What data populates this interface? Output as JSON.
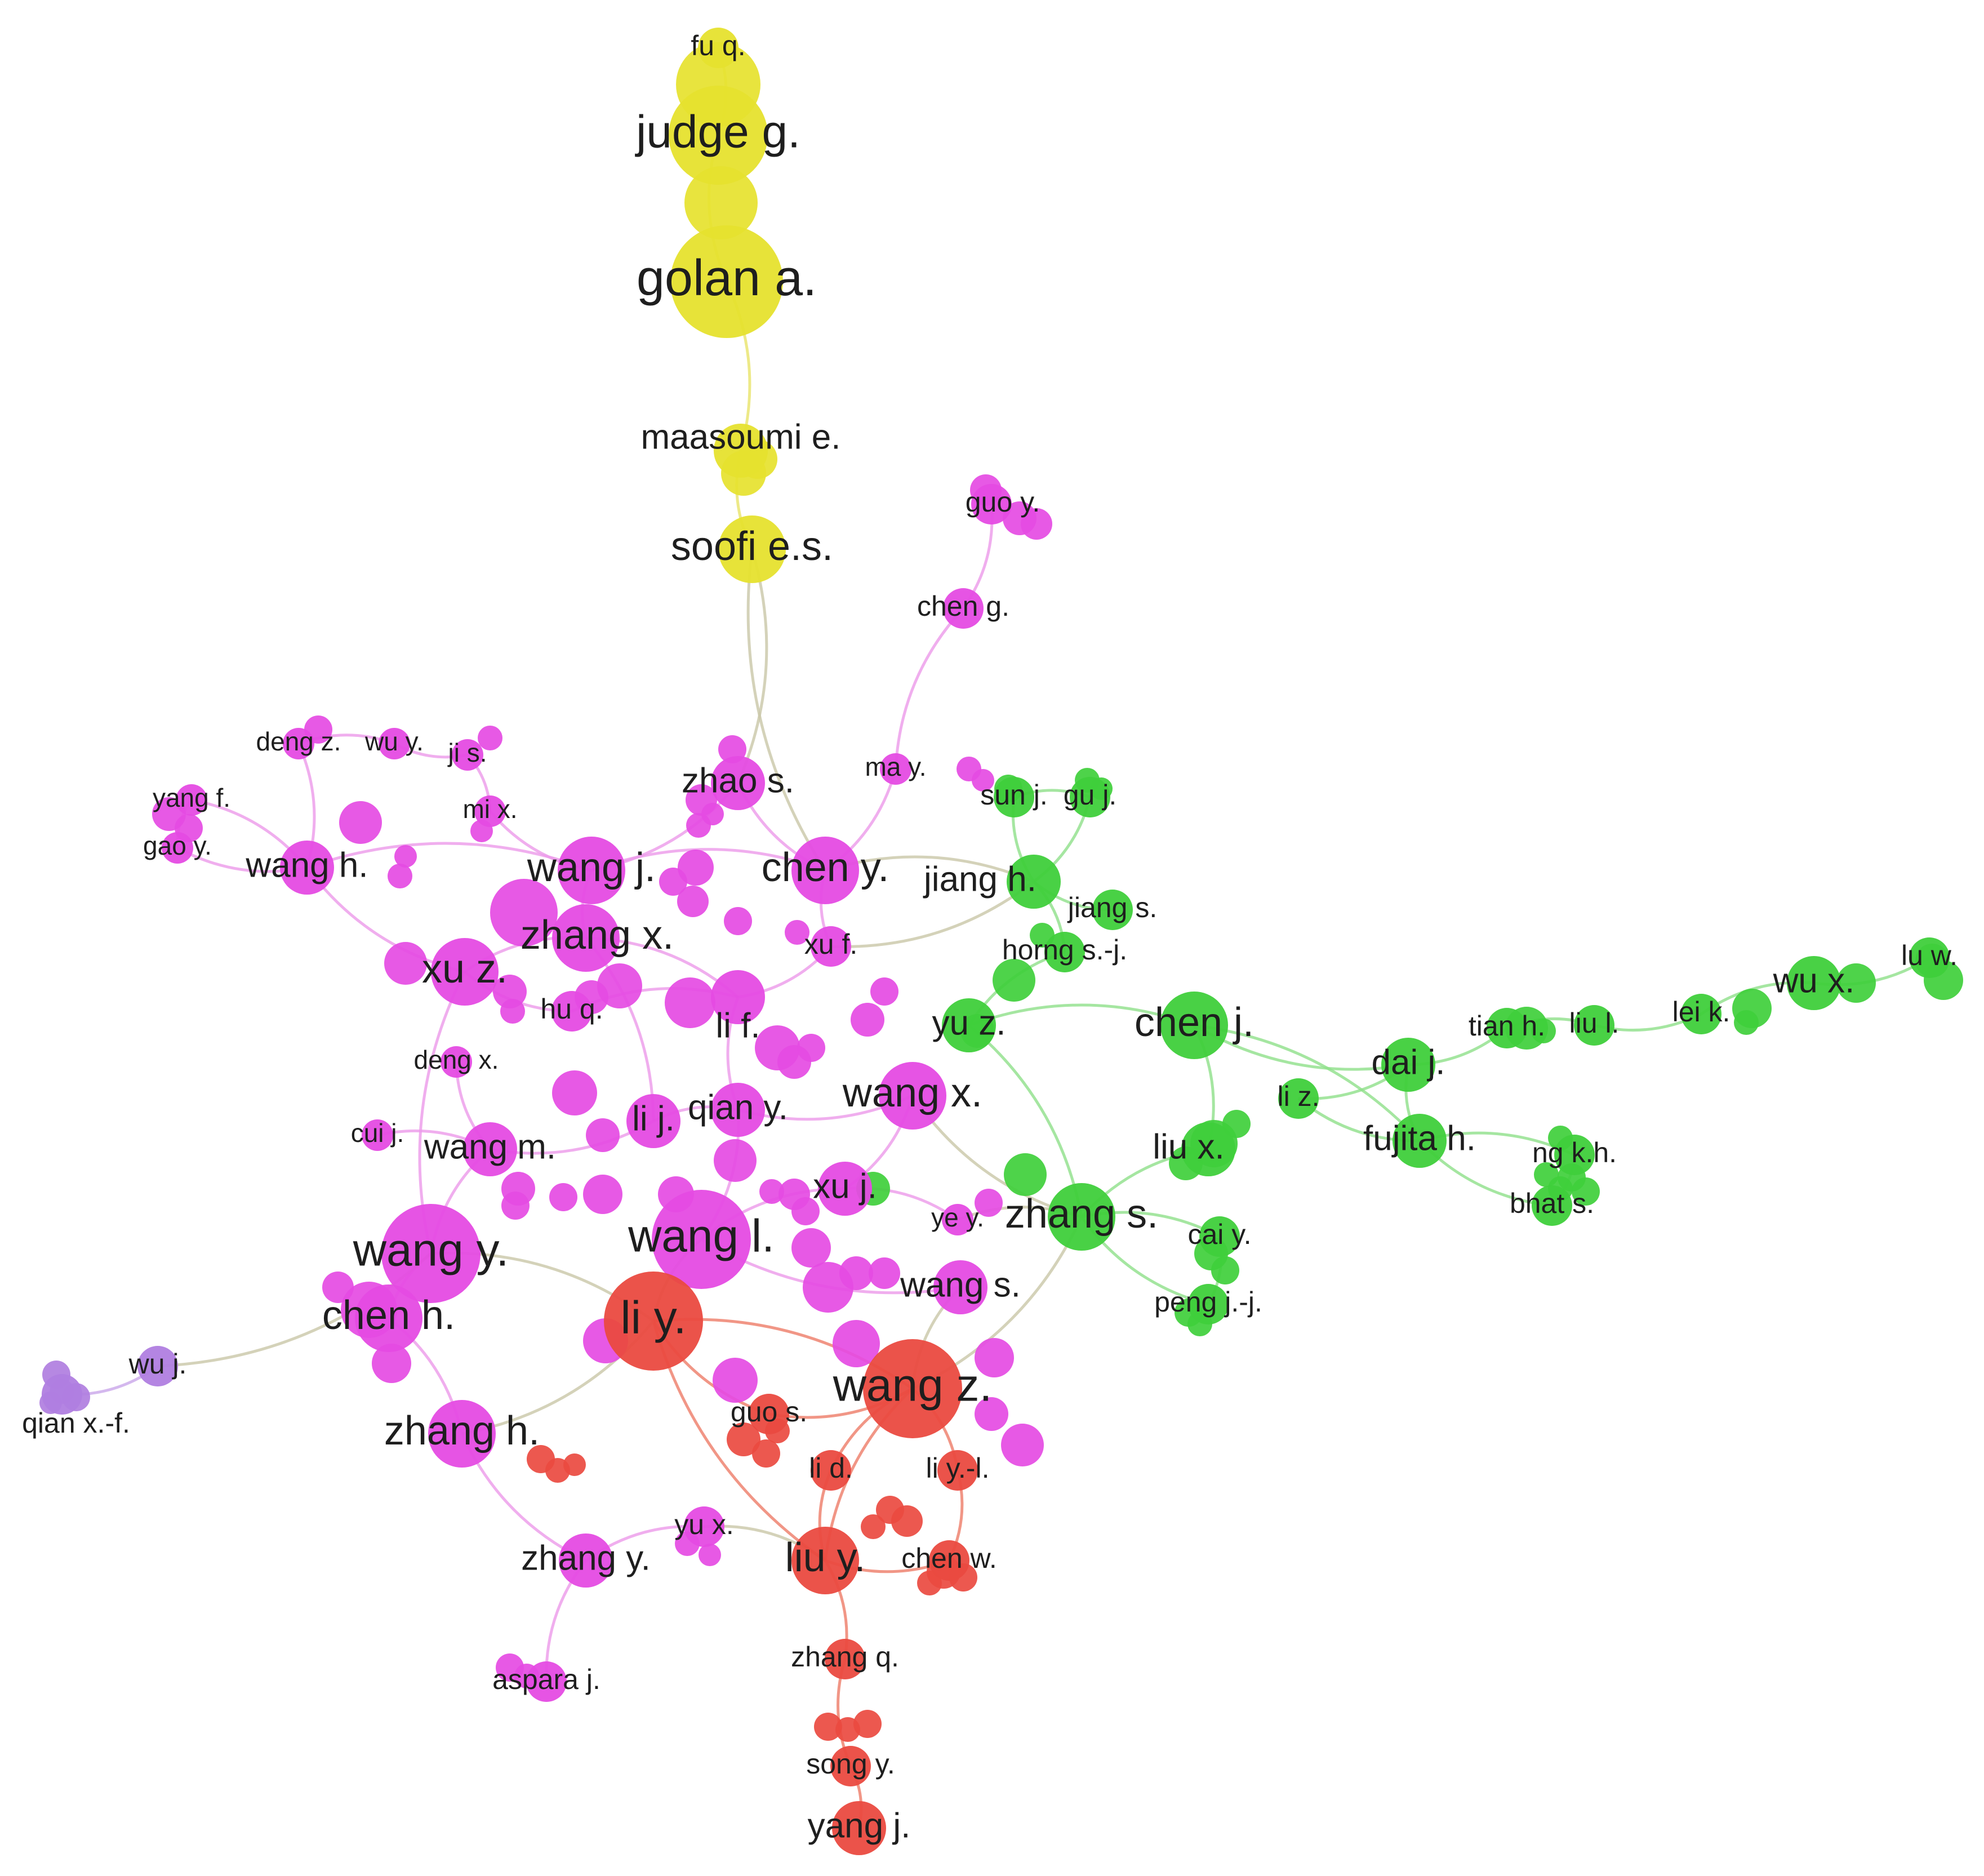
{
  "title": "",
  "clusters": [
    {
      "id": "yellow",
      "color": "#e6e22e",
      "edge_color": "#e9e46a"
    },
    {
      "id": "magenta",
      "color": "#e54be3",
      "edge_color": "#ec9aea"
    },
    {
      "id": "green",
      "color": "#3fcf3b",
      "edge_color": "#8fe08a"
    },
    {
      "id": "red",
      "color": "#ea4a40",
      "edge_color": "#ee7c68"
    },
    {
      "id": "purple",
      "color": "#b07ee0",
      "edge_color": "#c9a6ea"
    }
  ],
  "nodes": [
    {
      "id": "fuq",
      "label": "fu q.",
      "cluster": "yellow",
      "weight": 2
    },
    {
      "id": "judge",
      "label": "judge g.",
      "cluster": "yellow",
      "weight": 5
    },
    {
      "id": "golan",
      "label": "golan a.",
      "cluster": "yellow",
      "weight": 6
    },
    {
      "id": "maasoumi",
      "label": "maasoumi e.",
      "cluster": "yellow",
      "weight": 3
    },
    {
      "id": "soofi",
      "label": "soofi e.s.",
      "cluster": "yellow",
      "weight": 4
    },
    {
      "id": "guoy",
      "label": "guo y.",
      "cluster": "magenta",
      "weight": 2
    },
    {
      "id": "cheng",
      "label": "chen g.",
      "cluster": "magenta",
      "weight": 2
    },
    {
      "id": "dengz",
      "label": "deng z.",
      "cluster": "magenta",
      "weight": 1
    },
    {
      "id": "wuy",
      "label": "wu y.",
      "cluster": "magenta",
      "weight": 1
    },
    {
      "id": "jis",
      "label": "ji s.",
      "cluster": "magenta",
      "weight": 1
    },
    {
      "id": "yangf",
      "label": "yang f.",
      "cluster": "magenta",
      "weight": 1
    },
    {
      "id": "gaoy",
      "label": "gao y.",
      "cluster": "magenta",
      "weight": 1
    },
    {
      "id": "wangh",
      "label": "wang h.",
      "cluster": "magenta",
      "weight": 3
    },
    {
      "id": "mix",
      "label": "mi x.",
      "cluster": "magenta",
      "weight": 1
    },
    {
      "id": "zhaos",
      "label": "zhao s.",
      "cluster": "magenta",
      "weight": 3
    },
    {
      "id": "may",
      "label": "ma y.",
      "cluster": "magenta",
      "weight": 1
    },
    {
      "id": "wangj",
      "label": "wang j.",
      "cluster": "magenta",
      "weight": 4
    },
    {
      "id": "cheny",
      "label": "chen y.",
      "cluster": "magenta",
      "weight": 4
    },
    {
      "id": "zhangx",
      "label": "zhang x.",
      "cluster": "magenta",
      "weight": 4
    },
    {
      "id": "xuf",
      "label": "xu f.",
      "cluster": "magenta",
      "weight": 2
    },
    {
      "id": "xuz",
      "label": "xu z.",
      "cluster": "magenta",
      "weight": 4
    },
    {
      "id": "huq",
      "label": "hu q.",
      "cluster": "magenta",
      "weight": 2
    },
    {
      "id": "lif",
      "label": "li f.",
      "cluster": "magenta",
      "weight": 3
    },
    {
      "id": "dengx",
      "label": "deng x.",
      "cluster": "magenta",
      "weight": 1
    },
    {
      "id": "lij",
      "label": "li j.",
      "cluster": "magenta",
      "weight": 3
    },
    {
      "id": "qiany",
      "label": "qian y.",
      "cluster": "magenta",
      "weight": 3
    },
    {
      "id": "wangx",
      "label": "wang x.",
      "cluster": "magenta",
      "weight": 4
    },
    {
      "id": "cuij",
      "label": "cui j.",
      "cluster": "magenta",
      "weight": 1
    },
    {
      "id": "wangm",
      "label": "wang m.",
      "cluster": "magenta",
      "weight": 3
    },
    {
      "id": "xuj",
      "label": "xu j.",
      "cluster": "magenta",
      "weight": 3
    },
    {
      "id": "yey",
      "label": "ye y.",
      "cluster": "magenta",
      "weight": 1
    },
    {
      "id": "wangy",
      "label": "wang y.",
      "cluster": "magenta",
      "weight": 5
    },
    {
      "id": "wangl",
      "label": "wang l.",
      "cluster": "magenta",
      "weight": 5
    },
    {
      "id": "wangs",
      "label": "wang s.",
      "cluster": "magenta",
      "weight": 3
    },
    {
      "id": "chenh",
      "label": "chen h.",
      "cluster": "magenta",
      "weight": 4
    },
    {
      "id": "zhangh",
      "label": "zhang h.",
      "cluster": "magenta",
      "weight": 4
    },
    {
      "id": "zhangy",
      "label": "zhang y.",
      "cluster": "magenta",
      "weight": 3
    },
    {
      "id": "yux",
      "label": "yu x.",
      "cluster": "magenta",
      "weight": 2
    },
    {
      "id": "asparaj",
      "label": "aspara j.",
      "cluster": "magenta",
      "weight": 2
    },
    {
      "id": "sunj",
      "label": "sun j.",
      "cluster": "green",
      "weight": 2
    },
    {
      "id": "guj",
      "label": "gu j.",
      "cluster": "green",
      "weight": 2
    },
    {
      "id": "jiangh",
      "label": "jiang h.",
      "cluster": "green",
      "weight": 3
    },
    {
      "id": "jiangs",
      "label": "jiang s.",
      "cluster": "green",
      "weight": 2
    },
    {
      "id": "horngsj",
      "label": "horng s.-j.",
      "cluster": "green",
      "weight": 2
    },
    {
      "id": "yuz",
      "label": "yu z.",
      "cluster": "green",
      "weight": 3
    },
    {
      "id": "chenj",
      "label": "chen j.",
      "cluster": "green",
      "weight": 4
    },
    {
      "id": "daij",
      "label": "dai j.",
      "cluster": "green",
      "weight": 3
    },
    {
      "id": "tianh",
      "label": "tian h.",
      "cluster": "green",
      "weight": 2
    },
    {
      "id": "liul",
      "label": "liu l.",
      "cluster": "green",
      "weight": 2
    },
    {
      "id": "leik",
      "label": "lei k.",
      "cluster": "green",
      "weight": 2
    },
    {
      "id": "wux",
      "label": "wu x.",
      "cluster": "green",
      "weight": 3
    },
    {
      "id": "luw",
      "label": "lu w.",
      "cluster": "green",
      "weight": 2
    },
    {
      "id": "liz",
      "label": "li z.",
      "cluster": "green",
      "weight": 2
    },
    {
      "id": "fujitah",
      "label": "fujita h.",
      "cluster": "green",
      "weight": 3
    },
    {
      "id": "liux",
      "label": "liu x.",
      "cluster": "green",
      "weight": 3
    },
    {
      "id": "ngkh",
      "label": "ng k.h.",
      "cluster": "green",
      "weight": 2
    },
    {
      "id": "bhats",
      "label": "bhat s.",
      "cluster": "green",
      "weight": 2
    },
    {
      "id": "zhangs",
      "label": "zhang s.",
      "cluster": "green",
      "weight": 4
    },
    {
      "id": "caiy",
      "label": "cai y.",
      "cluster": "green",
      "weight": 2
    },
    {
      "id": "pengjj",
      "label": "peng j.-j.",
      "cluster": "green",
      "weight": 2
    },
    {
      "id": "liy",
      "label": "li y.",
      "cluster": "red",
      "weight": 5
    },
    {
      "id": "wangz",
      "label": "wang z.",
      "cluster": "red",
      "weight": 5
    },
    {
      "id": "guos",
      "label": "guo s.",
      "cluster": "red",
      "weight": 2
    },
    {
      "id": "lid",
      "label": "li d.",
      "cluster": "red",
      "weight": 2
    },
    {
      "id": "liyl",
      "label": "li y.-l.",
      "cluster": "red",
      "weight": 2
    },
    {
      "id": "liuy",
      "label": "liu y.",
      "cluster": "red",
      "weight": 4
    },
    {
      "id": "chenw",
      "label": "chen w.",
      "cluster": "red",
      "weight": 2
    },
    {
      "id": "zhangq",
      "label": "zhang q.",
      "cluster": "red",
      "weight": 2
    },
    {
      "id": "songy",
      "label": "song y.",
      "cluster": "red",
      "weight": 2
    },
    {
      "id": "yangj",
      "label": "yang j.",
      "cluster": "red",
      "weight": 3
    },
    {
      "id": "wuj",
      "label": "wu j.",
      "cluster": "purple",
      "weight": 2
    },
    {
      "id": "qianxf",
      "label": "qian x.-f.",
      "cluster": "purple",
      "weight": 2
    }
  ],
  "edges": [
    [
      "fuq",
      "judge"
    ],
    [
      "judge",
      "golan"
    ],
    [
      "golan",
      "maasoumi"
    ],
    [
      "maasoumi",
      "soofi"
    ],
    [
      "soofi",
      "zhaos"
    ],
    [
      "soofi",
      "cheny"
    ],
    [
      "guoy",
      "cheng"
    ],
    [
      "cheng",
      "may"
    ],
    [
      "dengz",
      "wuy"
    ],
    [
      "wuy",
      "jis"
    ],
    [
      "dengz",
      "wangh"
    ],
    [
      "yangf",
      "gaoy"
    ],
    [
      "yangf",
      "wangh"
    ],
    [
      "gaoy",
      "wangh"
    ],
    [
      "jis",
      "mix"
    ],
    [
      "mix",
      "wangj"
    ],
    [
      "wangh",
      "wangj"
    ],
    [
      "wangh",
      "xuz"
    ],
    [
      "zhaos",
      "wangj"
    ],
    [
      "zhaos",
      "cheny"
    ],
    [
      "may",
      "cheny"
    ],
    [
      "wangj",
      "zhangx"
    ],
    [
      "wangj",
      "cheny"
    ],
    [
      "zhangx",
      "xuz"
    ],
    [
      "zhangx",
      "lif"
    ],
    [
      "xuz",
      "huq"
    ],
    [
      "huq",
      "lif"
    ],
    [
      "cheny",
      "xuf"
    ],
    [
      "xuf",
      "lif"
    ],
    [
      "lif",
      "qiany"
    ],
    [
      "lij",
      "qiany"
    ],
    [
      "qiany",
      "wangx"
    ],
    [
      "lij",
      "wangm"
    ],
    [
      "dengx",
      "wangm"
    ],
    [
      "cuij",
      "wangm"
    ],
    [
      "wangm",
      "wangy"
    ],
    [
      "wangx",
      "xuj"
    ],
    [
      "xuj",
      "wangl"
    ],
    [
      "qiany",
      "wangl"
    ],
    [
      "wangy",
      "chenh"
    ],
    [
      "chenh",
      "zhangh"
    ],
    [
      "wangl",
      "liy"
    ],
    [
      "wangy",
      "liy"
    ],
    [
      "wangs",
      "wangz"
    ],
    [
      "xuj",
      "yey"
    ],
    [
      "zhangh",
      "zhangy"
    ],
    [
      "zhangy",
      "yux"
    ],
    [
      "zhangy",
      "asparaj"
    ],
    [
      "yux",
      "liuy"
    ],
    [
      "xuz",
      "wangy"
    ],
    [
      "zhangx",
      "lij"
    ],
    [
      "wangl",
      "wangs"
    ],
    [
      "sunj",
      "guj"
    ],
    [
      "sunj",
      "jiangh"
    ],
    [
      "guj",
      "jiangh"
    ],
    [
      "jiangh",
      "jiangs"
    ],
    [
      "jiangh",
      "horngsj"
    ],
    [
      "horngsj",
      "yuz"
    ],
    [
      "yuz",
      "chenj"
    ],
    [
      "chenj",
      "daij"
    ],
    [
      "chenj",
      "liux"
    ],
    [
      "daij",
      "tianh"
    ],
    [
      "tianh",
      "liul"
    ],
    [
      "liul",
      "leik"
    ],
    [
      "leik",
      "wux"
    ],
    [
      "wux",
      "luw"
    ],
    [
      "daij",
      "liz"
    ],
    [
      "liz",
      "fujitah"
    ],
    [
      "fujitah",
      "ngkh"
    ],
    [
      "fujitah",
      "bhats"
    ],
    [
      "ngkh",
      "bhats"
    ],
    [
      "liux",
      "zhangs"
    ],
    [
      "zhangs",
      "caiy"
    ],
    [
      "zhangs",
      "pengjj"
    ],
    [
      "caiy",
      "pengjj"
    ],
    [
      "zhangs",
      "yuz"
    ],
    [
      "chenj",
      "fujitah"
    ],
    [
      "daij",
      "fujitah"
    ],
    [
      "liy",
      "wangz"
    ],
    [
      "liy",
      "guos"
    ],
    [
      "wangz",
      "guos"
    ],
    [
      "wangz",
      "lid"
    ],
    [
      "wangz",
      "liyl"
    ],
    [
      "lid",
      "liuy"
    ],
    [
      "liyl",
      "chenw"
    ],
    [
      "liuy",
      "chenw"
    ],
    [
      "liuy",
      "zhangq"
    ],
    [
      "zhangq",
      "songy"
    ],
    [
      "songy",
      "yangj"
    ],
    [
      "liy",
      "liuy"
    ],
    [
      "liy",
      "zhangh"
    ],
    [
      "wangz",
      "liuy"
    ],
    [
      "wuj",
      "qianxf"
    ],
    [
      "wuj",
      "wangy"
    ],
    [
      "cheny",
      "jiangh"
    ],
    [
      "wangx",
      "zhangs"
    ],
    [
      "yey",
      "zhangs"
    ],
    [
      "wangz",
      "zhangs"
    ],
    [
      "jiangh",
      "xuf"
    ]
  ]
}
